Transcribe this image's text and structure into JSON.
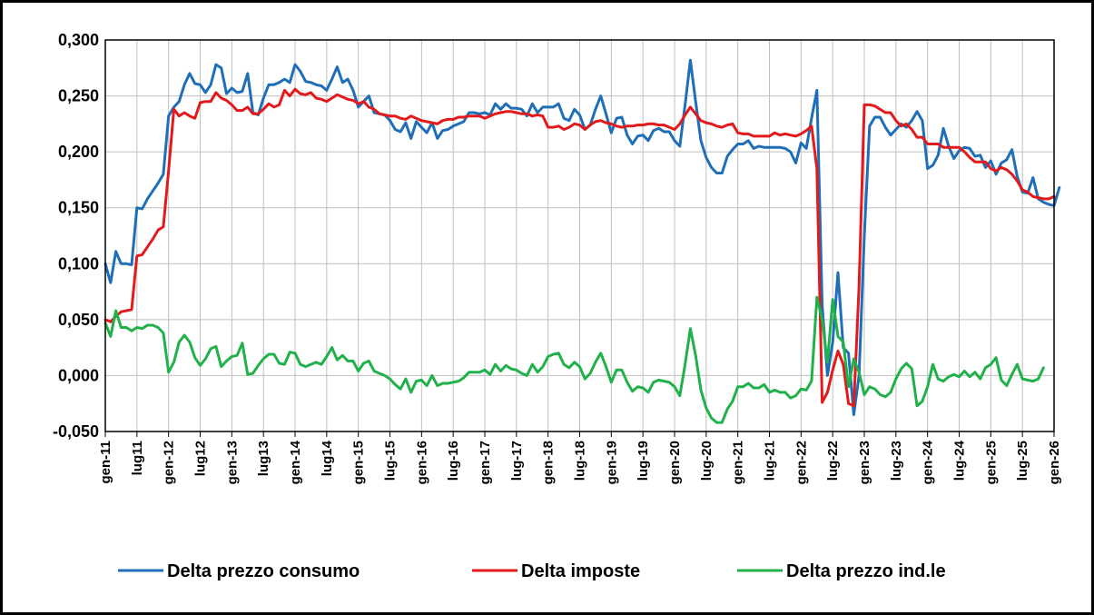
{
  "chart_data": {
    "type": "line",
    "title": "",
    "xlabel": "",
    "ylabel": "",
    "ylim": [
      -0.05,
      0.3
    ],
    "grid": true,
    "legend_position": "bottom",
    "y_ticks": [
      "0,300",
      "0,250",
      "0,200",
      "0,150",
      "0,100",
      "0,050",
      "0,000",
      "-0,050"
    ],
    "y_tick_values": [
      0.3,
      0.25,
      0.2,
      0.15,
      0.1,
      0.05,
      0.0,
      -0.05
    ],
    "negative_tick_color": "#e00000",
    "x_ticks": [
      "gen-11",
      "lug11",
      "gen-12",
      "lug12",
      "gen-13",
      "lug13",
      "gen-14",
      "lug14",
      "gen-15",
      "lug-15",
      "gen-16",
      "lug-16",
      "gen-17",
      "lug-17",
      "gen-18",
      "lug-18",
      "gen-19",
      "lug-19",
      "gen-20",
      "lug-20",
      "gen-21",
      "lug-21",
      "gen-22",
      "lug-22",
      "gen-23",
      "lug-23",
      "gen-24",
      "lug-24",
      "gen-25",
      "lug-25",
      "gen-26"
    ],
    "x_start": "gen-11",
    "series": [
      {
        "name": "Delta prezzo consumo",
        "color": "#1f6fb8",
        "values": [
          0.1,
          0.083,
          0.111,
          0.1,
          0.1,
          0.099,
          0.15,
          0.149,
          0.158,
          0.165,
          0.172,
          0.18,
          0.232,
          0.24,
          0.245,
          0.26,
          0.27,
          0.261,
          0.26,
          0.253,
          0.26,
          0.278,
          0.275,
          0.252,
          0.257,
          0.253,
          0.254,
          0.27,
          0.235,
          0.233,
          0.248,
          0.26,
          0.26,
          0.262,
          0.265,
          0.262,
          0.278,
          0.272,
          0.263,
          0.262,
          0.26,
          0.259,
          0.255,
          0.265,
          0.276,
          0.262,
          0.265,
          0.255,
          0.24,
          0.245,
          0.25,
          0.235,
          0.234,
          0.233,
          0.228,
          0.22,
          0.218,
          0.226,
          0.212,
          0.227,
          0.222,
          0.217,
          0.226,
          0.212,
          0.219,
          0.22,
          0.223,
          0.225,
          0.227,
          0.235,
          0.235,
          0.234,
          0.235,
          0.233,
          0.243,
          0.238,
          0.243,
          0.239,
          0.239,
          0.238,
          0.232,
          0.243,
          0.235,
          0.24,
          0.24,
          0.24,
          0.243,
          0.23,
          0.228,
          0.238,
          0.233,
          0.22,
          0.224,
          0.238,
          0.25,
          0.234,
          0.217,
          0.23,
          0.231,
          0.215,
          0.207,
          0.214,
          0.215,
          0.21,
          0.219,
          0.221,
          0.218,
          0.218,
          0.21,
          0.205,
          0.242,
          0.282,
          0.245,
          0.21,
          0.195,
          0.186,
          0.181,
          0.181,
          0.196,
          0.202,
          0.207,
          0.207,
          0.21,
          0.203,
          0.205,
          0.204,
          0.204,
          0.204,
          0.204,
          0.203,
          0.2,
          0.19,
          0.208,
          0.203,
          0.23,
          0.255,
          0.063,
          0.0,
          0.03,
          0.092,
          0.025,
          0.02,
          -0.035,
          0.0,
          0.125,
          0.223,
          0.231,
          0.231,
          0.222,
          0.215,
          0.22,
          0.225,
          0.222,
          0.228,
          0.236,
          0.228,
          0.185,
          0.188,
          0.197,
          0.221,
          0.205,
          0.194,
          0.201,
          0.204,
          0.203,
          0.196,
          0.197,
          0.186,
          0.192,
          0.18,
          0.19,
          0.193,
          0.202,
          0.178,
          0.164,
          0.163,
          0.177,
          0.158,
          0.155,
          0.153,
          0.152,
          0.168
        ]
      },
      {
        "name": "Delta imposte",
        "color": "#e31a1c",
        "values": [
          0.05,
          0.048,
          0.053,
          0.057,
          0.058,
          0.059,
          0.107,
          0.108,
          0.115,
          0.122,
          0.13,
          0.133,
          0.183,
          0.238,
          0.232,
          0.235,
          0.232,
          0.23,
          0.244,
          0.245,
          0.245,
          0.253,
          0.248,
          0.246,
          0.242,
          0.237,
          0.237,
          0.24,
          0.234,
          0.234,
          0.238,
          0.243,
          0.24,
          0.242,
          0.255,
          0.25,
          0.256,
          0.252,
          0.251,
          0.253,
          0.248,
          0.247,
          0.245,
          0.248,
          0.251,
          0.249,
          0.247,
          0.246,
          0.243,
          0.245,
          0.24,
          0.238,
          0.234,
          0.233,
          0.232,
          0.232,
          0.23,
          0.229,
          0.232,
          0.23,
          0.228,
          0.227,
          0.226,
          0.225,
          0.228,
          0.229,
          0.229,
          0.231,
          0.231,
          0.232,
          0.232,
          0.232,
          0.23,
          0.232,
          0.234,
          0.235,
          0.236,
          0.236,
          0.235,
          0.234,
          0.234,
          0.232,
          0.233,
          0.232,
          0.222,
          0.222,
          0.223,
          0.22,
          0.222,
          0.225,
          0.224,
          0.22,
          0.224,
          0.227,
          0.228,
          0.226,
          0.225,
          0.223,
          0.222,
          0.223,
          0.223,
          0.224,
          0.224,
          0.225,
          0.225,
          0.224,
          0.224,
          0.222,
          0.22,
          0.225,
          0.233,
          0.24,
          0.234,
          0.228,
          0.226,
          0.225,
          0.223,
          0.222,
          0.224,
          0.225,
          0.217,
          0.216,
          0.216,
          0.214,
          0.214,
          0.214,
          0.214,
          0.217,
          0.215,
          0.216,
          0.215,
          0.214,
          0.216,
          0.219,
          0.223,
          0.185,
          -0.024,
          -0.015,
          0.005,
          0.022,
          0.01,
          -0.025,
          -0.027,
          0.08,
          0.242,
          0.242,
          0.241,
          0.238,
          0.235,
          0.235,
          0.228,
          0.223,
          0.225,
          0.22,
          0.213,
          0.213,
          0.207,
          0.207,
          0.207,
          0.204,
          0.204,
          0.204,
          0.204,
          0.2,
          0.195,
          0.191,
          0.191,
          0.191,
          0.185,
          0.183,
          0.186,
          0.184,
          0.18,
          0.174,
          0.166,
          0.164,
          0.16,
          0.159,
          0.158,
          0.158,
          0.16
        ]
      },
      {
        "name": "Delta prezzo ind.le",
        "color": "#21b14b",
        "values": [
          0.047,
          0.035,
          0.058,
          0.043,
          0.043,
          0.04,
          0.043,
          0.042,
          0.045,
          0.045,
          0.043,
          0.038,
          0.003,
          0.012,
          0.03,
          0.036,
          0.03,
          0.016,
          0.009,
          0.015,
          0.024,
          0.026,
          0.008,
          0.013,
          0.017,
          0.018,
          0.029,
          0.001,
          0.002,
          0.009,
          0.015,
          0.019,
          0.019,
          0.011,
          0.01,
          0.021,
          0.02,
          0.01,
          0.008,
          0.01,
          0.012,
          0.01,
          0.017,
          0.025,
          0.014,
          0.018,
          0.013,
          0.013,
          0.004,
          0.011,
          0.013,
          0.004,
          0.002,
          0.0,
          -0.003,
          -0.008,
          -0.012,
          -0.003,
          -0.015,
          -0.005,
          -0.004,
          -0.009,
          0.0,
          -0.009,
          -0.007,
          -0.007,
          -0.006,
          -0.005,
          -0.002,
          0.003,
          0.003,
          0.003,
          0.005,
          0.001,
          0.01,
          0.004,
          0.009,
          0.006,
          0.005,
          0.002,
          0.0,
          0.01,
          0.003,
          0.008,
          0.017,
          0.019,
          0.02,
          0.01,
          0.007,
          0.012,
          0.008,
          -0.003,
          0.002,
          0.012,
          0.02,
          0.008,
          -0.006,
          0.005,
          0.005,
          -0.006,
          -0.014,
          -0.01,
          -0.011,
          -0.015,
          -0.006,
          -0.004,
          -0.005,
          -0.006,
          -0.01,
          -0.018,
          0.01,
          0.042,
          0.018,
          -0.013,
          -0.029,
          -0.038,
          -0.042,
          -0.042,
          -0.03,
          -0.023,
          -0.01,
          -0.01,
          -0.007,
          -0.011,
          -0.011,
          -0.008,
          -0.015,
          -0.013,
          -0.015,
          -0.015,
          -0.02,
          -0.018,
          -0.012,
          -0.013,
          -0.005,
          0.07,
          0.05,
          0.012,
          0.068,
          0.035,
          0.03,
          -0.01,
          0.015,
          0.003,
          -0.017,
          -0.01,
          -0.012,
          -0.017,
          -0.019,
          -0.015,
          -0.003,
          0.006,
          0.011,
          0.006,
          -0.027,
          -0.023,
          -0.01,
          0.01,
          -0.003,
          -0.005,
          -0.001,
          0.001,
          -0.001,
          0.004,
          -0.001,
          0.003,
          -0.003,
          0.007,
          0.01,
          0.016,
          -0.004,
          -0.009,
          0.001,
          0.01,
          -0.003,
          -0.004,
          -0.005,
          -0.003,
          0.007
        ]
      }
    ]
  }
}
